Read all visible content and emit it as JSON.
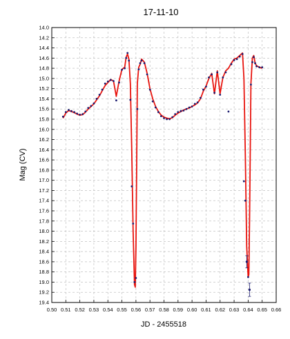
{
  "chart_data": {
    "type": "line",
    "title": "17-11-10",
    "xlabel": "JD - 2455518",
    "ylabel": "Mag (CV)",
    "xlim": [
      0.5,
      0.66
    ],
    "ylim": [
      14.0,
      19.4
    ],
    "y_inverted": true,
    "grid": true,
    "x_ticks": [
      "0.50",
      "0.51",
      "0.52",
      "0.53",
      "0.54",
      "0.55",
      "0.56",
      "0.57",
      "0.58",
      "0.59",
      "0.60",
      "0.61",
      "0.62",
      "0.63",
      "0.64",
      "0.65",
      "0.66"
    ],
    "y_ticks": [
      "14.0",
      "14.2",
      "14.4",
      "14.6",
      "14.8",
      "15.0",
      "15.2",
      "15.4",
      "15.6",
      "15.8",
      "16.0",
      "16.2",
      "16.4",
      "16.6",
      "16.8",
      "17.0",
      "17.2",
      "17.4",
      "17.6",
      "17.8",
      "18.0",
      "18.2",
      "18.4",
      "18.6",
      "18.8",
      "19.0",
      "19.2",
      "19.4"
    ],
    "series": [
      {
        "kind": "fit",
        "color": "#e8130d",
        "x": [
          0.508,
          0.51,
          0.512,
          0.514,
          0.516,
          0.518,
          0.52,
          0.522,
          0.524,
          0.526,
          0.528,
          0.53,
          0.532,
          0.534,
          0.536,
          0.538,
          0.54,
          0.542,
          0.544,
          0.546,
          0.548,
          0.55,
          0.552,
          0.553,
          0.554,
          0.555,
          0.556,
          0.557,
          0.558,
          0.559,
          0.5595,
          0.56,
          0.5605,
          0.561,
          0.562,
          0.563,
          0.564,
          0.566,
          0.568,
          0.57,
          0.572,
          0.574,
          0.576,
          0.578,
          0.58,
          0.582,
          0.584,
          0.586,
          0.588,
          0.59,
          0.592,
          0.594,
          0.596,
          0.598,
          0.6,
          0.602,
          0.604,
          0.606,
          0.608,
          0.61,
          0.612,
          0.614,
          0.616,
          0.618,
          0.62,
          0.622,
          0.624,
          0.626,
          0.628,
          0.63,
          0.632,
          0.634,
          0.636,
          0.637,
          0.638,
          0.639,
          0.64,
          0.6405,
          0.641,
          0.6415,
          0.642,
          0.643,
          0.644,
          0.645,
          0.646,
          0.648,
          0.65
        ],
        "y": [
          15.78,
          15.68,
          15.63,
          15.65,
          15.67,
          15.7,
          15.72,
          15.71,
          15.66,
          15.6,
          15.55,
          15.5,
          15.42,
          15.34,
          15.24,
          15.14,
          15.08,
          15.02,
          15.05,
          15.35,
          15.05,
          14.82,
          14.78,
          14.58,
          14.52,
          14.62,
          15.1,
          16.4,
          18.0,
          19.05,
          19.1,
          18.3,
          16.8,
          15.1,
          14.78,
          14.72,
          14.62,
          14.68,
          14.9,
          15.2,
          15.4,
          15.55,
          15.65,
          15.72,
          15.76,
          15.78,
          15.79,
          15.77,
          15.72,
          15.68,
          15.65,
          15.62,
          15.6,
          15.58,
          15.55,
          15.52,
          15.48,
          15.4,
          15.25,
          15.15,
          15.0,
          14.9,
          15.3,
          14.85,
          15.3,
          14.98,
          14.85,
          14.8,
          14.7,
          14.62,
          14.6,
          14.55,
          14.5,
          15.0,
          16.5,
          18.3,
          18.9,
          18.85,
          17.8,
          16.5,
          15.1,
          14.6,
          14.55,
          14.7,
          14.75,
          14.78,
          14.8
        ]
      },
      {
        "kind": "observations",
        "color": "#1a1a6e",
        "x": [
          0.508,
          0.51,
          0.512,
          0.514,
          0.516,
          0.518,
          0.52,
          0.522,
          0.524,
          0.526,
          0.528,
          0.53,
          0.532,
          0.534,
          0.536,
          0.538,
          0.54,
          0.542,
          0.544,
          0.546,
          0.548,
          0.55,
          0.552,
          0.553,
          0.554,
          0.555,
          0.556,
          0.557,
          0.558,
          0.559,
          0.56,
          0.561,
          0.562,
          0.563,
          0.564,
          0.566,
          0.568,
          0.57,
          0.572,
          0.574,
          0.576,
          0.578,
          0.58,
          0.582,
          0.584,
          0.586,
          0.588,
          0.59,
          0.592,
          0.594,
          0.596,
          0.598,
          0.6,
          0.602,
          0.604,
          0.606,
          0.608,
          0.61,
          0.612,
          0.614,
          0.616,
          0.618,
          0.62,
          0.622,
          0.624,
          0.626,
          0.628,
          0.63,
          0.632,
          0.634,
          0.636,
          0.637,
          0.638,
          0.639,
          0.64,
          0.641,
          0.642,
          0.643,
          0.644,
          0.645,
          0.646,
          0.648,
          0.65
        ],
        "y": [
          15.75,
          15.66,
          15.62,
          15.64,
          15.66,
          15.69,
          15.71,
          15.7,
          15.65,
          15.58,
          15.54,
          15.49,
          15.4,
          15.32,
          15.22,
          15.1,
          15.06,
          15.03,
          15.05,
          15.43,
          15.08,
          14.83,
          14.8,
          14.6,
          14.5,
          14.65,
          15.42,
          17.12,
          17.85,
          19.0,
          18.92,
          15.6,
          14.82,
          14.7,
          14.65,
          14.7,
          14.92,
          15.22,
          15.45,
          15.57,
          15.66,
          15.74,
          15.78,
          15.8,
          15.8,
          15.76,
          15.7,
          15.66,
          15.64,
          15.63,
          15.6,
          15.57,
          15.55,
          15.5,
          15.47,
          15.38,
          15.22,
          15.16,
          14.98,
          14.92,
          15.28,
          14.88,
          15.32,
          14.98,
          14.88,
          15.65,
          14.72,
          14.64,
          14.62,
          14.57,
          14.52,
          17.02,
          17.4,
          18.6,
          18.9,
          19.15,
          15.12,
          14.68,
          14.58,
          14.7,
          14.76,
          14.78,
          14.78
        ],
        "error_bars": [
          {
            "x": 0.641,
            "y": 19.15,
            "low": 19.02,
            "high": 19.28
          },
          {
            "x": 0.639,
            "y": 18.6,
            "low": 18.48,
            "high": 18.72
          }
        ]
      }
    ]
  }
}
